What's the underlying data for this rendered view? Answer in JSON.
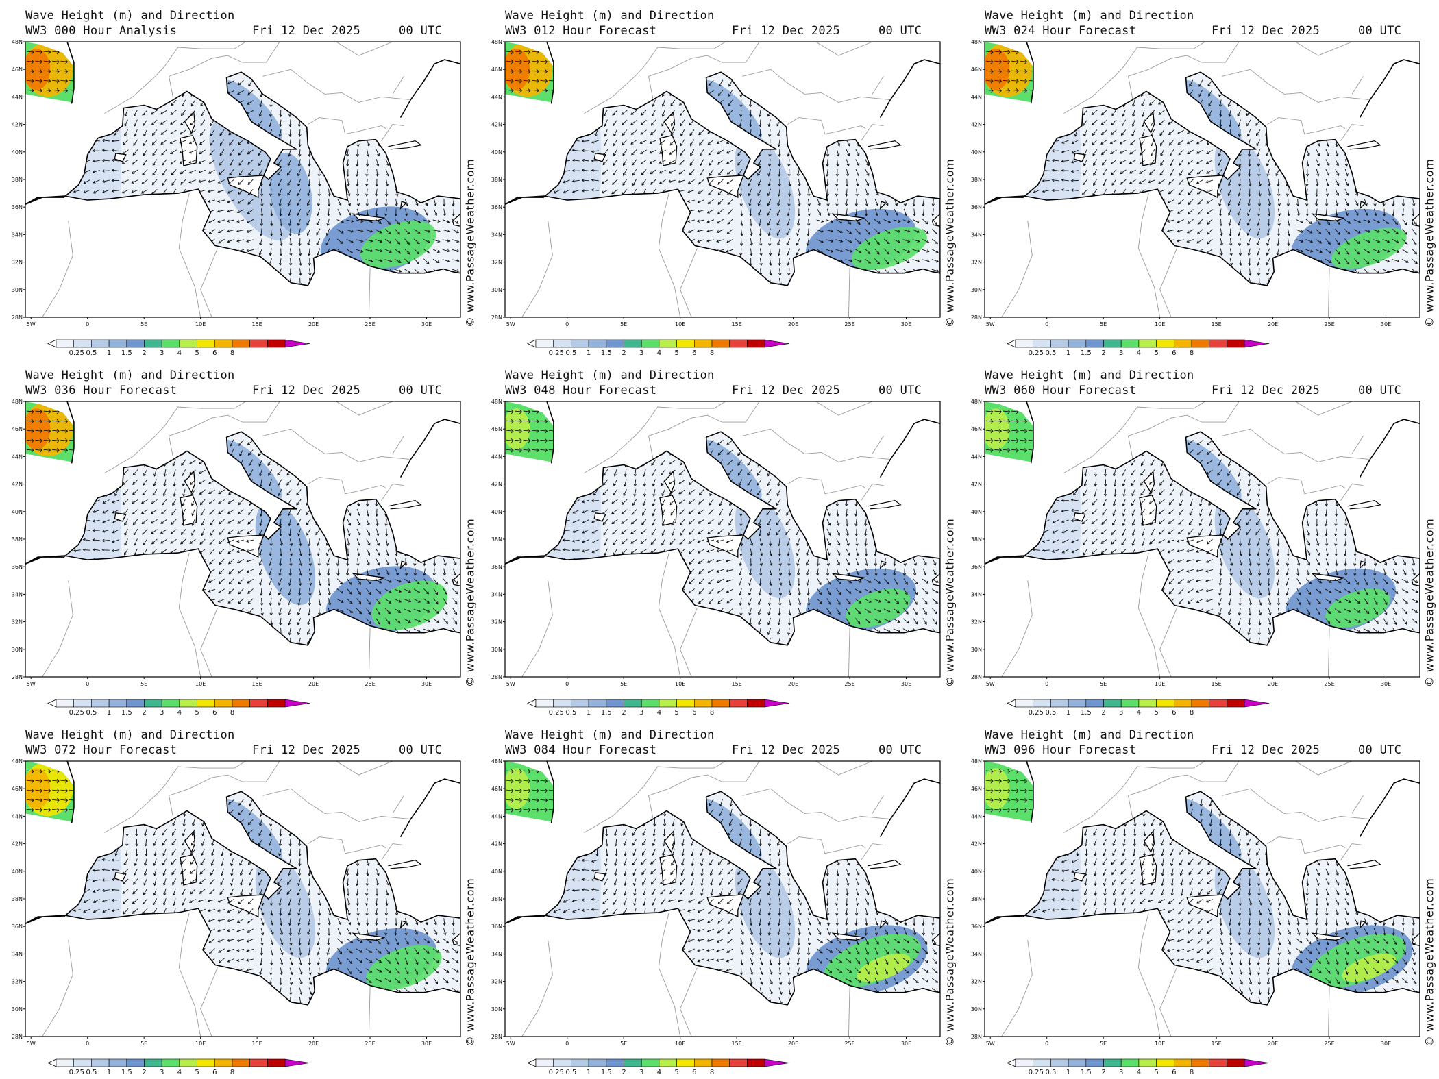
{
  "panels": [
    {
      "title": "Wave Height (m) and Direction",
      "subtitle": "WW3 000 Hour Analysis",
      "date": "Fri 12 Dec 2025",
      "time": "00 UTC",
      "credit": "© www.PassageWeather.com"
    },
    {
      "title": "Wave Height (m) and Direction",
      "subtitle": "WW3 012 Hour Forecast",
      "date": "Fri 12 Dec 2025",
      "time": "00 UTC",
      "credit": "© www.PassageWeather.com"
    },
    {
      "title": "Wave Height (m) and Direction",
      "subtitle": "WW3 024 Hour Forecast",
      "date": "Fri 12 Dec 2025",
      "time": "00 UTC",
      "credit": "© www.PassageWeather.com"
    },
    {
      "title": "Wave Height (m) and Direction",
      "subtitle": "WW3 036 Hour Forecast",
      "date": "Fri 12 Dec 2025",
      "time": "00 UTC",
      "credit": "© www.PassageWeather.com"
    },
    {
      "title": "Wave Height (m) and Direction",
      "subtitle": "WW3 048 Hour Forecast",
      "date": "Fri 12 Dec 2025",
      "time": "00 UTC",
      "credit": "© www.PassageWeather.com"
    },
    {
      "title": "Wave Height (m) and Direction",
      "subtitle": "WW3 060 Hour Forecast",
      "date": "Fri 12 Dec 2025",
      "time": "00 UTC",
      "credit": "© www.PassageWeather.com"
    },
    {
      "title": "Wave Height (m) and Direction",
      "subtitle": "WW3 072 Hour Forecast",
      "date": "Fri 12 Dec 2025",
      "time": "00 UTC",
      "credit": "© www.PassageWeather.com"
    },
    {
      "title": "Wave Height (m) and Direction",
      "subtitle": "WW3 084 Hour Forecast",
      "date": "Fri 12 Dec 2025",
      "time": "00 UTC",
      "credit": "© www.PassageWeather.com"
    },
    {
      "title": "Wave Height (m) and Direction",
      "subtitle": "WW3 096 Hour Forecast",
      "date": "Fri 12 Dec 2025",
      "time": "00 UTC",
      "credit": "© www.PassageWeather.com"
    }
  ],
  "map": {
    "lat_ticks": [
      "28N",
      "30N",
      "32N",
      "34N",
      "36N",
      "38N",
      "40N",
      "42N",
      "44N",
      "46N",
      "48N"
    ],
    "lon_ticks": [
      "5W",
      "0",
      "5E",
      "10E",
      "15E",
      "20E",
      "25E",
      "30E"
    ],
    "lon_range": [
      -5.5,
      33
    ],
    "lat_range": [
      28,
      48
    ]
  },
  "colorbar": {
    "labels": [
      "0.25",
      "0.5",
      "1",
      "1.5",
      "2",
      "3",
      "4",
      "5",
      "6",
      "8"
    ],
    "colors": [
      "#eef3fa",
      "#d5e2f2",
      "#b4cae6",
      "#93b3dc",
      "#6f96cf",
      "#3fb88f",
      "#5ce06b",
      "#b8ee4a",
      "#f3e600",
      "#f5b400",
      "#f07a00",
      "#e8403a",
      "#c00000",
      "#c800c8"
    ],
    "unit": "m"
  },
  "icons": {
    "arrow": "wave-direction-arrow-icon"
  }
}
